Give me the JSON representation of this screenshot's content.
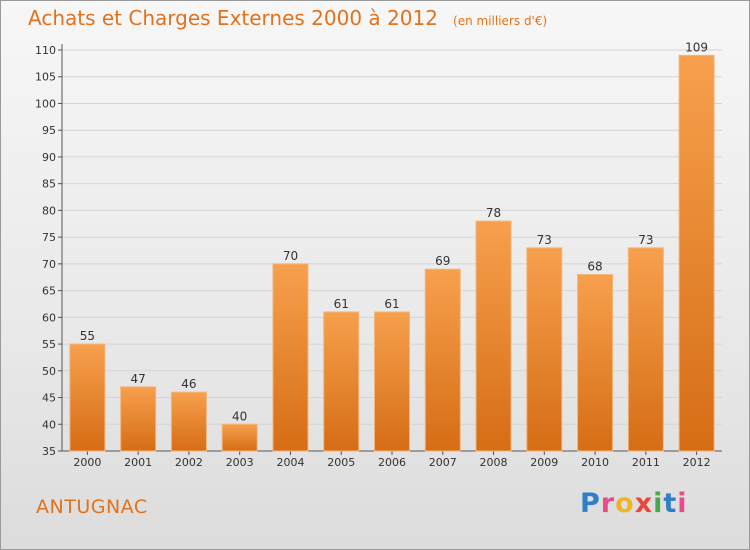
{
  "colors": {
    "accent": "#e2731c",
    "bar_top": "#f7a04d",
    "bar_bottom": "#d66d15",
    "grid": "#d4d4d4",
    "axis_text": "#333333"
  },
  "header": {
    "title": "Achats et Charges Externes 2000 à 2012",
    "subtitle": "(en milliers d'€)"
  },
  "footer": {
    "commune": "ANTUGNAC",
    "logo_letters": [
      {
        "ch": "P",
        "color": "#2f7fc8"
      },
      {
        "ch": "r",
        "color": "#e84b8a"
      },
      {
        "ch": "o",
        "color": "#f0b429"
      },
      {
        "ch": "x",
        "color": "#e8473c"
      },
      {
        "ch": "i",
        "color": "#4aa84b"
      },
      {
        "ch": "t",
        "color": "#2f7fc8"
      },
      {
        "ch": "i",
        "color": "#e84b8a"
      }
    ]
  },
  "chart_data": {
    "type": "bar",
    "categories": [
      "2000",
      "2001",
      "2002",
      "2003",
      "2004",
      "2005",
      "2006",
      "2007",
      "2008",
      "2009",
      "2010",
      "2011",
      "2012"
    ],
    "values": [
      55,
      47,
      46,
      40,
      70,
      61,
      61,
      69,
      78,
      73,
      68,
      73,
      109
    ],
    "yticks": [
      35,
      40,
      45,
      50,
      55,
      60,
      65,
      70,
      75,
      80,
      85,
      90,
      95,
      100,
      105,
      110
    ],
    "ylim": [
      35,
      110
    ],
    "grid": true,
    "xlabel": "",
    "ylabel": ""
  }
}
